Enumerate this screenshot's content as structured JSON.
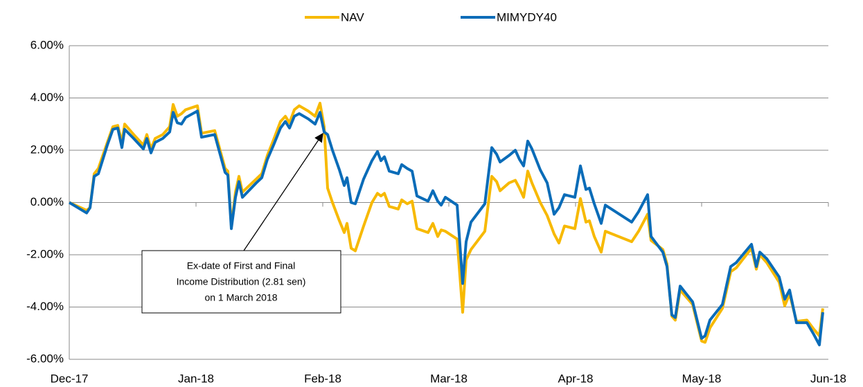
{
  "chart_data": {
    "type": "line",
    "x": [
      0,
      25,
      30,
      36,
      42,
      55,
      63,
      70,
      76,
      80,
      93,
      107,
      112,
      118,
      124,
      135,
      145,
      150,
      156,
      162,
      168,
      185,
      191,
      210,
      225,
      229,
      234,
      240,
      245,
      250,
      270,
      278,
      286,
      295,
      305,
      312,
      318,
      325,
      332,
      345,
      355,
      362,
      368,
      373,
      380,
      390,
      397,
      401,
      407,
      413,
      425,
      437,
      445,
      450,
      455,
      462,
      475,
      480,
      488,
      495,
      502,
      518,
      525,
      532,
      537,
      543,
      560,
      568,
      573,
      580,
      600,
      610,
      617,
      622,
      635,
      644,
      650,
      656,
      662,
      668,
      680,
      690,
      700,
      707,
      715,
      730,
      738,
      746,
      751,
      758,
      768,
      774,
      812,
      822,
      835,
      840,
      857,
      863,
      870,
      875,
      882,
      900,
      913,
      918,
      925,
      943,
      955,
      963,
      985,
      992,
      997,
      1007,
      1025,
      1033,
      1040,
      1050,
      1065,
      1075,
      1083,
      1088
    ],
    "series": [
      {
        "name": "NAV",
        "color": "#f7b900",
        "values": [
          0,
          -0.3,
          -0.2,
          1.1,
          1.3,
          2.3,
          2.9,
          2.95,
          2.3,
          3.0,
          2.6,
          2.2,
          2.6,
          2.05,
          2.45,
          2.6,
          2.9,
          3.75,
          3.3,
          3.4,
          3.55,
          3.7,
          2.65,
          2.75,
          1.3,
          1.2,
          -0.9,
          0.4,
          1.0,
          0.4,
          0.9,
          1.1,
          1.8,
          2.4,
          3.1,
          3.3,
          3.05,
          3.55,
          3.7,
          3.5,
          3.3,
          3.8,
          2.9,
          0.55,
          0.0,
          -0.7,
          -1.15,
          -0.8,
          -1.75,
          -1.85,
          -0.9,
          0.0,
          0.35,
          0.25,
          0.35,
          -0.15,
          -0.25,
          0.1,
          -0.05,
          0.05,
          -1.0,
          -1.15,
          -0.8,
          -1.3,
          -1.05,
          -1.1,
          -1.4,
          -4.2,
          -2.2,
          -1.8,
          -1.1,
          1.0,
          0.8,
          0.45,
          0.75,
          0.85,
          0.55,
          0.2,
          1.2,
          0.75,
          0.0,
          -0.5,
          -1.2,
          -1.55,
          -0.9,
          -1.0,
          0.15,
          -0.75,
          -0.7,
          -1.3,
          -1.9,
          -1.1,
          -1.5,
          -1.1,
          -0.45,
          -1.45,
          -1.8,
          -2.35,
          -4.35,
          -4.5,
          -3.35,
          -3.9,
          -5.3,
          -5.35,
          -4.8,
          -4.05,
          -2.65,
          -2.5,
          -1.75,
          -2.55,
          -2.0,
          -2.3,
          -3.05,
          -3.95,
          -3.5,
          -4.55,
          -4.5,
          -4.85,
          -5.1,
          -4.05
        ]
      },
      {
        "name": "MIMYDY40",
        "color": "#0a6cb8",
        "values": [
          0,
          -0.4,
          -0.2,
          1.0,
          1.1,
          2.2,
          2.8,
          2.85,
          2.1,
          2.8,
          2.45,
          2.05,
          2.45,
          1.9,
          2.3,
          2.45,
          2.7,
          3.45,
          3.05,
          3.0,
          3.25,
          3.5,
          2.5,
          2.6,
          1.15,
          1.05,
          -1.0,
          0.2,
          0.8,
          0.2,
          0.75,
          0.95,
          1.65,
          2.2,
          2.85,
          3.1,
          2.85,
          3.3,
          3.4,
          3.2,
          3.0,
          3.45,
          2.7,
          2.6,
          2.0,
          1.25,
          0.65,
          0.95,
          0.0,
          -0.05,
          0.9,
          1.6,
          1.95,
          1.6,
          1.75,
          1.2,
          1.1,
          1.45,
          1.3,
          1.2,
          0.25,
          0.05,
          0.45,
          0.05,
          -0.1,
          0.2,
          -0.1,
          -3.1,
          -1.5,
          -0.75,
          -0.05,
          2.1,
          1.85,
          1.55,
          1.8,
          2.0,
          1.65,
          1.4,
          2.35,
          2.05,
          1.25,
          0.75,
          -0.45,
          -0.2,
          0.3,
          0.2,
          1.4,
          0.5,
          0.55,
          -0.05,
          -0.8,
          -0.1,
          -0.75,
          -0.35,
          0.3,
          -1.3,
          -1.9,
          -2.45,
          -4.3,
          -4.4,
          -3.2,
          -3.8,
          -5.2,
          -5.1,
          -4.5,
          -3.9,
          -2.45,
          -2.3,
          -1.6,
          -2.45,
          -1.9,
          -2.15,
          -2.85,
          -3.7,
          -3.35,
          -4.6,
          -4.6,
          -5.05,
          -5.45,
          -4.2
        ]
      }
    ],
    "xlim": [
      0,
      1096
    ],
    "xticks": [
      {
        "value": 0,
        "label": "Dec-17"
      },
      {
        "value": 183,
        "label": "Jan-18"
      },
      {
        "value": 366,
        "label": "Feb-18"
      },
      {
        "value": 548,
        "label": "Mar-18"
      },
      {
        "value": 731,
        "label": "Apr-18"
      },
      {
        "value": 913,
        "label": "May-18"
      },
      {
        "value": 1096,
        "label": "Jun-18"
      }
    ],
    "ylim": [
      -6,
      6
    ],
    "yticks": [
      {
        "value": -6,
        "label": "-6.00%"
      },
      {
        "value": -4,
        "label": "-4.00%"
      },
      {
        "value": -2,
        "label": "-2.00%"
      },
      {
        "value": 0,
        "label": "0.00%"
      },
      {
        "value": 2,
        "label": "2.00%"
      },
      {
        "value": 4,
        "label": "4.00%"
      },
      {
        "value": 6,
        "label": "6.00%"
      }
    ],
    "grid": true,
    "legend": "top",
    "annotation": [
      "Ex-date of First and Final",
      "Income Distribution (2.81 sen)",
      "on 1 March 2018"
    ]
  }
}
